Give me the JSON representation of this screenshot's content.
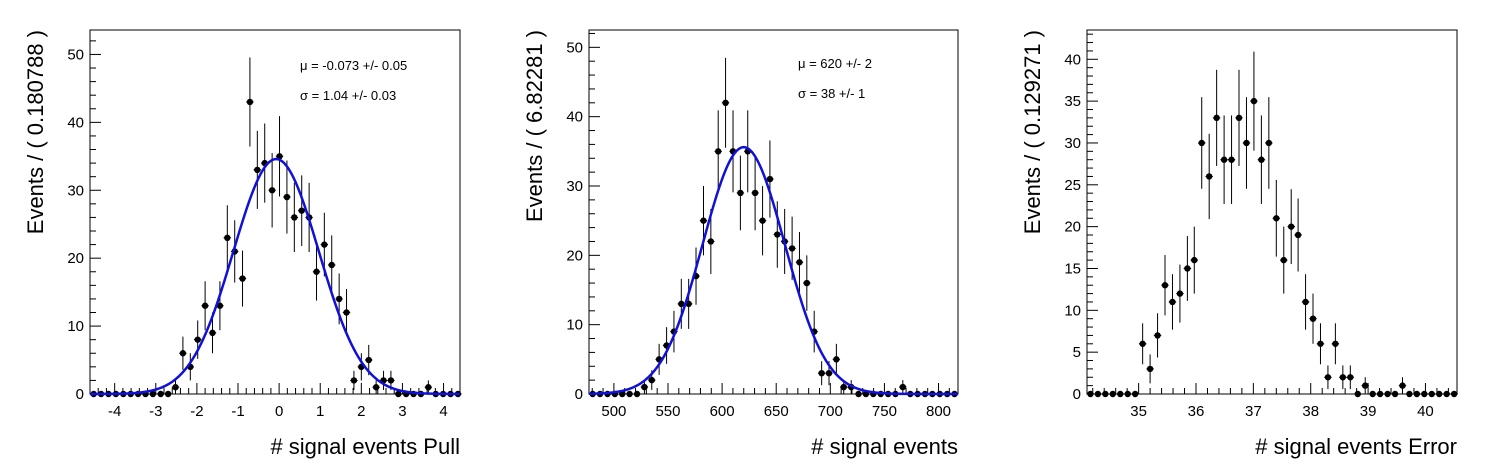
{
  "chart_data": [
    {
      "type": "scatter",
      "xlabel": "# signal events Pull",
      "ylabel": "Events / ( 0.180788 )",
      "xlim": [
        -4.6,
        4.4
      ],
      "ylim": [
        0,
        53.6
      ],
      "xticks": [
        -4,
        -3,
        -2,
        -1,
        0,
        1,
        2,
        3,
        4
      ],
      "yticks": [
        0,
        10,
        20,
        30,
        40,
        50
      ],
      "stats": [
        "μ = -0.073 +/- 0.05",
        "σ =  1.04 +/- 0.03"
      ],
      "fit": {
        "mean": -0.073,
        "sigma": 1.04,
        "amplitude": 34.6
      },
      "points": [
        {
          "x": -4.51,
          "y": 0
        },
        {
          "x": -4.33,
          "y": 0
        },
        {
          "x": -4.15,
          "y": 0
        },
        {
          "x": -3.97,
          "y": 0
        },
        {
          "x": -3.79,
          "y": 0
        },
        {
          "x": -3.61,
          "y": 0
        },
        {
          "x": -3.43,
          "y": 0
        },
        {
          "x": -3.25,
          "y": 0
        },
        {
          "x": -3.07,
          "y": 0
        },
        {
          "x": -2.88,
          "y": 0
        },
        {
          "x": -2.7,
          "y": 0
        },
        {
          "x": -2.52,
          "y": 1
        },
        {
          "x": -2.34,
          "y": 6
        },
        {
          "x": -2.16,
          "y": 4
        },
        {
          "x": -1.98,
          "y": 8
        },
        {
          "x": -1.8,
          "y": 13
        },
        {
          "x": -1.62,
          "y": 9
        },
        {
          "x": -1.44,
          "y": 13
        },
        {
          "x": -1.26,
          "y": 23
        },
        {
          "x": -1.08,
          "y": 21
        },
        {
          "x": -0.89,
          "y": 17
        },
        {
          "x": -0.71,
          "y": 43
        },
        {
          "x": -0.53,
          "y": 33
        },
        {
          "x": -0.35,
          "y": 34
        },
        {
          "x": -0.17,
          "y": 30
        },
        {
          "x": 0.01,
          "y": 35
        },
        {
          "x": 0.19,
          "y": 29
        },
        {
          "x": 0.37,
          "y": 26
        },
        {
          "x": 0.55,
          "y": 27
        },
        {
          "x": 0.73,
          "y": 26
        },
        {
          "x": 0.91,
          "y": 18
        },
        {
          "x": 1.1,
          "y": 22
        },
        {
          "x": 1.28,
          "y": 19
        },
        {
          "x": 1.46,
          "y": 14
        },
        {
          "x": 1.64,
          "y": 12
        },
        {
          "x": 1.82,
          "y": 2
        },
        {
          "x": 2.0,
          "y": 4
        },
        {
          "x": 2.18,
          "y": 5
        },
        {
          "x": 2.36,
          "y": 1
        },
        {
          "x": 2.54,
          "y": 2
        },
        {
          "x": 2.72,
          "y": 2
        },
        {
          "x": 2.9,
          "y": 0
        },
        {
          "x": 3.09,
          "y": 0
        },
        {
          "x": 3.27,
          "y": 0
        },
        {
          "x": 3.45,
          "y": 0
        },
        {
          "x": 3.63,
          "y": 1
        },
        {
          "x": 3.81,
          "y": 0
        },
        {
          "x": 3.99,
          "y": 0
        },
        {
          "x": 4.17,
          "y": 0
        },
        {
          "x": 4.35,
          "y": 0
        }
      ]
    },
    {
      "type": "scatter",
      "xlabel": "# signal events",
      "ylabel": "Events / ( 6.82281 )",
      "xlim": [
        477,
        818
      ],
      "ylim": [
        0,
        52.5
      ],
      "xticks": [
        500,
        550,
        600,
        650,
        700,
        750,
        800
      ],
      "yticks": [
        0,
        10,
        20,
        30,
        40,
        50
      ],
      "stats": [
        "μ =  620 +/- 2",
        "σ =  38 +/- 1"
      ],
      "fit": {
        "mean": 620,
        "sigma": 38,
        "amplitude": 35.6
      },
      "points": [
        {
          "x": 480.4,
          "y": 0
        },
        {
          "x": 487.2,
          "y": 0
        },
        {
          "x": 494.1,
          "y": 0
        },
        {
          "x": 500.9,
          "y": 0
        },
        {
          "x": 507.7,
          "y": 0
        },
        {
          "x": 514.5,
          "y": 0
        },
        {
          "x": 521.4,
          "y": 0
        },
        {
          "x": 528.2,
          "y": 1
        },
        {
          "x": 535.0,
          "y": 2
        },
        {
          "x": 541.8,
          "y": 5
        },
        {
          "x": 548.7,
          "y": 7
        },
        {
          "x": 555.5,
          "y": 9
        },
        {
          "x": 562.3,
          "y": 13
        },
        {
          "x": 569.1,
          "y": 13
        },
        {
          "x": 575.9,
          "y": 17
        },
        {
          "x": 582.8,
          "y": 25
        },
        {
          "x": 589.6,
          "y": 22
        },
        {
          "x": 596.4,
          "y": 35
        },
        {
          "x": 603.2,
          "y": 42
        },
        {
          "x": 610.1,
          "y": 35
        },
        {
          "x": 616.9,
          "y": 29
        },
        {
          "x": 623.7,
          "y": 35
        },
        {
          "x": 630.5,
          "y": 29
        },
        {
          "x": 637.4,
          "y": 25
        },
        {
          "x": 644.2,
          "y": 31
        },
        {
          "x": 651.0,
          "y": 23
        },
        {
          "x": 657.8,
          "y": 22
        },
        {
          "x": 664.7,
          "y": 21
        },
        {
          "x": 671.5,
          "y": 19
        },
        {
          "x": 678.3,
          "y": 16
        },
        {
          "x": 685.1,
          "y": 9
        },
        {
          "x": 692.0,
          "y": 3
        },
        {
          "x": 698.8,
          "y": 3
        },
        {
          "x": 705.6,
          "y": 5
        },
        {
          "x": 712.4,
          "y": 1
        },
        {
          "x": 719.3,
          "y": 1
        },
        {
          "x": 726.1,
          "y": 0
        },
        {
          "x": 732.9,
          "y": 0
        },
        {
          "x": 739.7,
          "y": 0
        },
        {
          "x": 746.6,
          "y": 0
        },
        {
          "x": 753.4,
          "y": 0
        },
        {
          "x": 760.2,
          "y": 0
        },
        {
          "x": 767.0,
          "y": 1
        },
        {
          "x": 773.9,
          "y": 0
        },
        {
          "x": 780.7,
          "y": 0
        },
        {
          "x": 787.5,
          "y": 0
        },
        {
          "x": 794.3,
          "y": 0
        },
        {
          "x": 801.2,
          "y": 0
        },
        {
          "x": 808.0,
          "y": 0
        },
        {
          "x": 814.8,
          "y": 0
        }
      ]
    },
    {
      "type": "scatter",
      "xlabel": "# signal events Error",
      "ylabel": "Events / ( 0.129271 )",
      "xlim": [
        34.1,
        40.55
      ],
      "ylim": [
        0,
        43.5
      ],
      "xticks": [
        35,
        36,
        37,
        38,
        39,
        40
      ],
      "yticks": [
        0,
        5,
        10,
        15,
        20,
        25,
        30,
        35,
        40
      ],
      "stats": [],
      "fit": null,
      "points": [
        {
          "x": 34.16,
          "y": 0
        },
        {
          "x": 34.29,
          "y": 0
        },
        {
          "x": 34.42,
          "y": 0
        },
        {
          "x": 34.55,
          "y": 0
        },
        {
          "x": 34.68,
          "y": 0
        },
        {
          "x": 34.81,
          "y": 0
        },
        {
          "x": 34.94,
          "y": 0
        },
        {
          "x": 35.07,
          "y": 6
        },
        {
          "x": 35.2,
          "y": 3
        },
        {
          "x": 35.33,
          "y": 7
        },
        {
          "x": 35.46,
          "y": 13
        },
        {
          "x": 35.59,
          "y": 11
        },
        {
          "x": 35.72,
          "y": 12
        },
        {
          "x": 35.85,
          "y": 15
        },
        {
          "x": 35.97,
          "y": 16
        },
        {
          "x": 36.1,
          "y": 30
        },
        {
          "x": 36.23,
          "y": 26
        },
        {
          "x": 36.36,
          "y": 33
        },
        {
          "x": 36.49,
          "y": 28
        },
        {
          "x": 36.62,
          "y": 28
        },
        {
          "x": 36.75,
          "y": 33
        },
        {
          "x": 36.88,
          "y": 30
        },
        {
          "x": 37.01,
          "y": 35
        },
        {
          "x": 37.14,
          "y": 28
        },
        {
          "x": 37.27,
          "y": 30
        },
        {
          "x": 37.4,
          "y": 21
        },
        {
          "x": 37.53,
          "y": 16
        },
        {
          "x": 37.66,
          "y": 20
        },
        {
          "x": 37.78,
          "y": 19
        },
        {
          "x": 37.91,
          "y": 11
        },
        {
          "x": 38.04,
          "y": 9
        },
        {
          "x": 38.17,
          "y": 6
        },
        {
          "x": 38.3,
          "y": 2
        },
        {
          "x": 38.43,
          "y": 6
        },
        {
          "x": 38.56,
          "y": 2
        },
        {
          "x": 38.69,
          "y": 2
        },
        {
          "x": 38.82,
          "y": 0
        },
        {
          "x": 38.95,
          "y": 1
        },
        {
          "x": 39.08,
          "y": 0
        },
        {
          "x": 39.21,
          "y": 0
        },
        {
          "x": 39.34,
          "y": 0
        },
        {
          "x": 39.47,
          "y": 0
        },
        {
          "x": 39.6,
          "y": 1
        },
        {
          "x": 39.72,
          "y": 0
        },
        {
          "x": 39.85,
          "y": 0
        },
        {
          "x": 39.98,
          "y": 0
        },
        {
          "x": 40.11,
          "y": 0
        },
        {
          "x": 40.24,
          "y": 0
        },
        {
          "x": 40.37,
          "y": 0
        },
        {
          "x": 40.5,
          "y": 0
        }
      ]
    }
  ]
}
